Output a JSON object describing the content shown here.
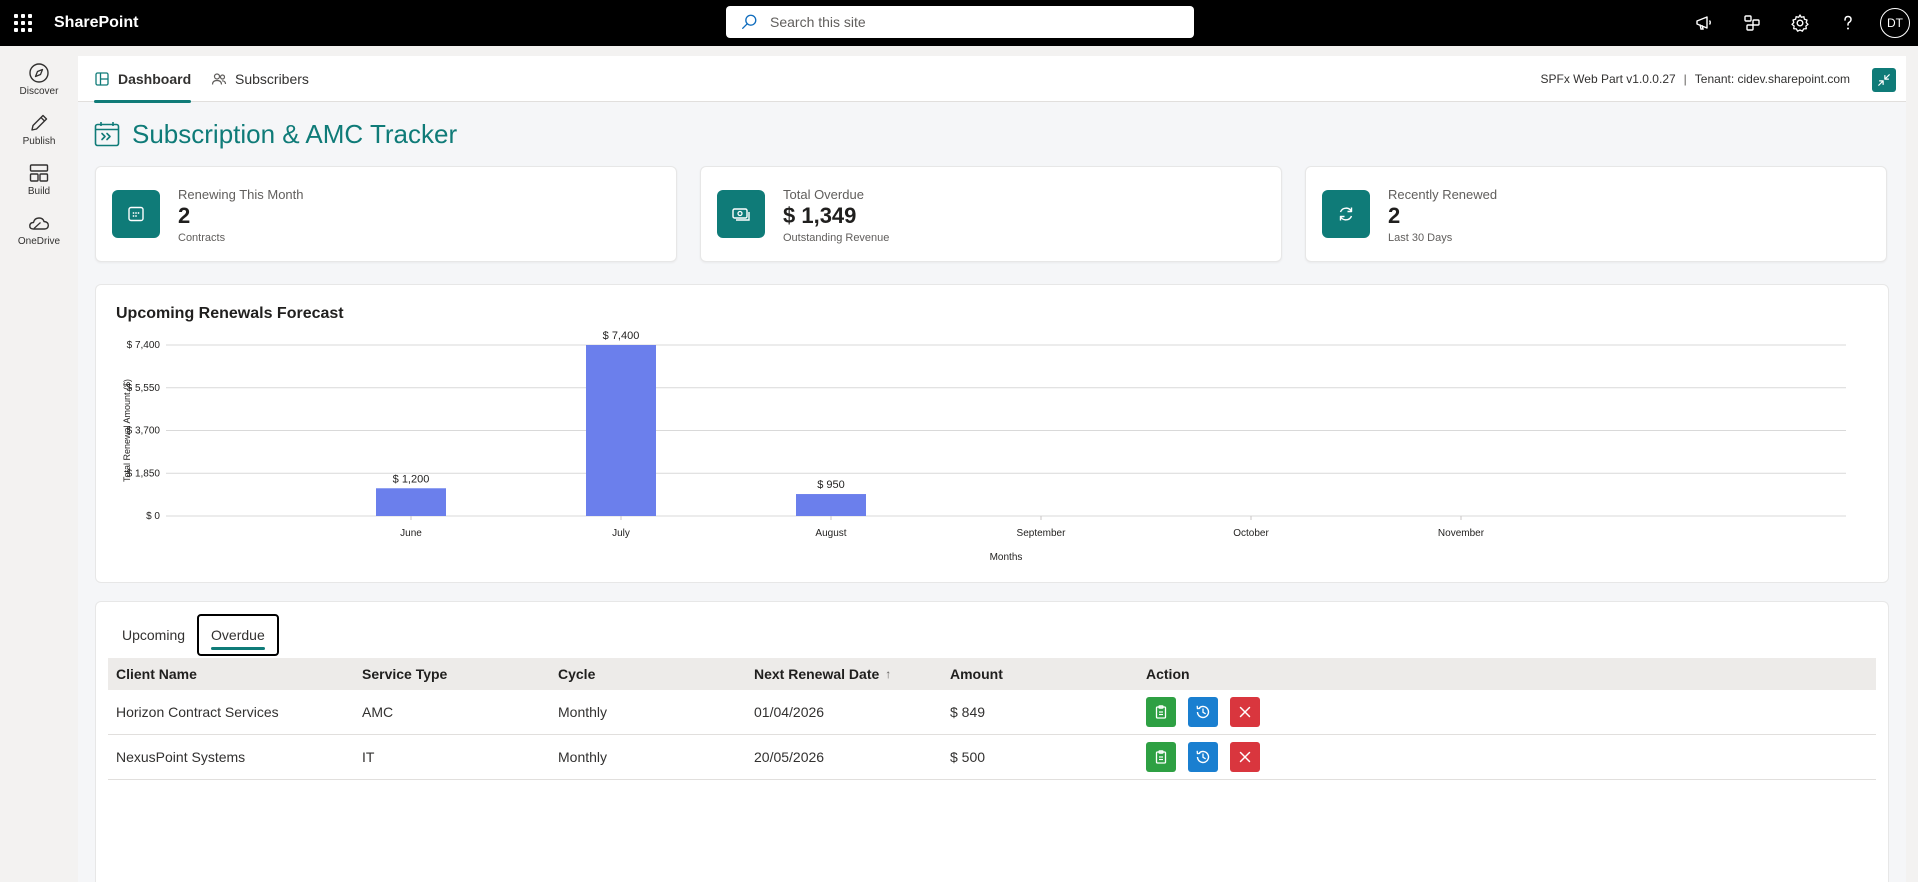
{
  "suitebar": {
    "brand": "SharePoint",
    "search_placeholder": "Search this site",
    "avatar_initials": "DT"
  },
  "appbar": {
    "items": [
      {
        "label": "Discover",
        "icon": "compass-icon"
      },
      {
        "label": "Publish",
        "icon": "pen-icon"
      },
      {
        "label": "Build",
        "icon": "build-icon"
      },
      {
        "label": "OneDrive",
        "icon": "cloud-icon"
      }
    ]
  },
  "nav": {
    "tabs": [
      {
        "label": "Dashboard",
        "active": true
      },
      {
        "label": "Subscribers",
        "active": false
      }
    ],
    "version": "SPFx Web Part v1.0.0.27",
    "separator": "|",
    "tenant": "Tenant: cidev.sharepoint.com"
  },
  "page": {
    "title": "Subscription & AMC Tracker"
  },
  "kpis": [
    {
      "label": "Renewing This Month",
      "value": "2",
      "sub": "Contracts",
      "icon": "calendar-icon"
    },
    {
      "label": "Total Overdue",
      "value": "$ 1,349",
      "sub": "Outstanding Revenue",
      "icon": "cash-icon"
    },
    {
      "label": "Recently Renewed",
      "value": "2",
      "sub": "Last 30 Days",
      "icon": "refresh-icon"
    }
  ],
  "chart": {
    "title": "Upcoming Renewals Forecast"
  },
  "chart_data": {
    "type": "bar",
    "title": "Upcoming Renewals Forecast",
    "xlabel": "Months",
    "ylabel": "Total Renewal Amount ($)",
    "categories": [
      "June",
      "July",
      "August",
      "September",
      "October",
      "November"
    ],
    "values": [
      1200,
      7400,
      950,
      0,
      0,
      0
    ],
    "data_labels": [
      "$ 1,200",
      "$ 7,400",
      "$ 950",
      "",
      "",
      ""
    ],
    "yticks": [
      0,
      1850,
      3700,
      5550,
      7400
    ],
    "ytick_labels": [
      "$ 0",
      "$ 1,850",
      "$ 3,700",
      "$ 5,550",
      "$ 7,400"
    ],
    "ylim": [
      0,
      7400
    ],
    "grid": true,
    "bar_color": "#6b7fec"
  },
  "table": {
    "tabs": [
      {
        "label": "Upcoming",
        "active": false
      },
      {
        "label": "Overdue",
        "active": true
      }
    ],
    "columns": [
      "Client Name",
      "Service Type",
      "Cycle",
      "Next Renewal Date",
      "Amount",
      "Action"
    ],
    "sort_indicator": "↑",
    "rows": [
      {
        "client": "Horizon Contract Services",
        "service": "AMC",
        "cycle": "Monthly",
        "date": "01/04/2026",
        "amount": "$ 849"
      },
      {
        "client": "NexusPoint Systems",
        "service": "IT",
        "cycle": "Monthly",
        "date": "20/05/2026",
        "amount": "$ 500"
      }
    ]
  },
  "colors": {
    "accent": "#0f7b78",
    "action_green": "#2ea043",
    "action_blue": "#1a7fd0",
    "action_red": "#d9363e"
  }
}
